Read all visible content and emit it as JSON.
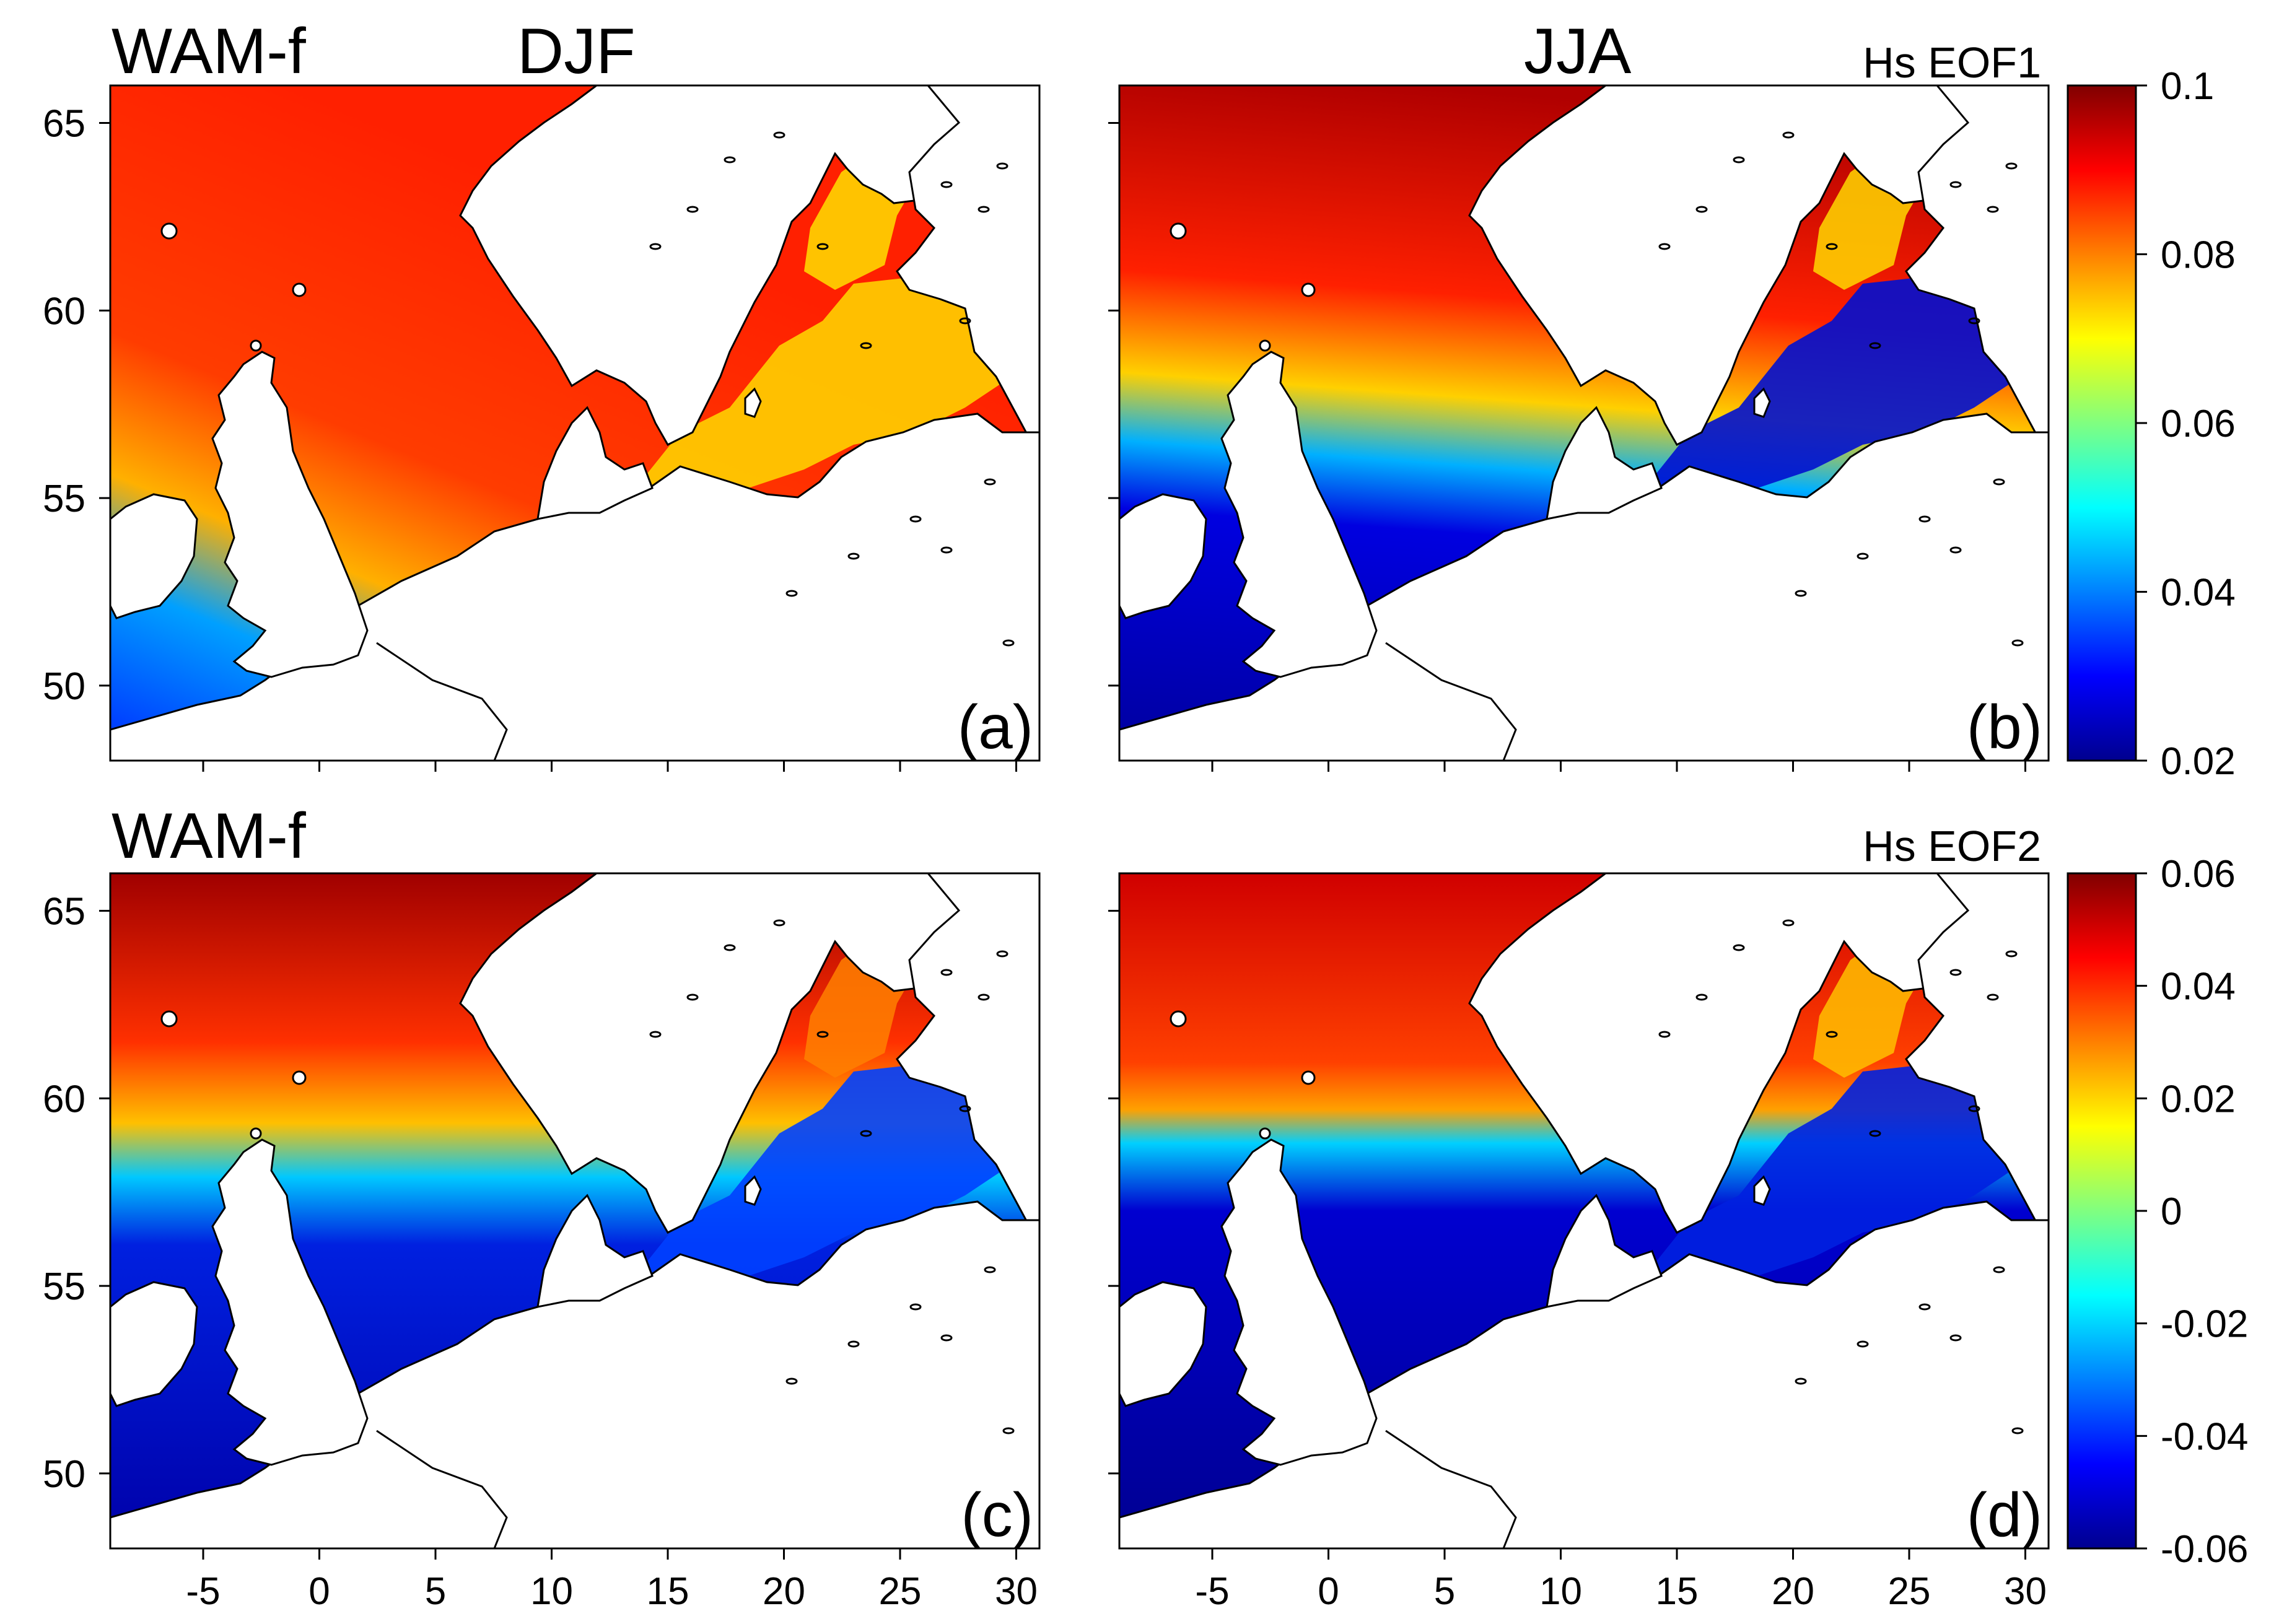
{
  "figure": {
    "model_label_top": "WAM-f",
    "model_label_bottom": "WAM-f",
    "season_left": "DJF",
    "season_right": "JJA",
    "eof1_label": "Hs EOF1",
    "eof2_label": "Hs EOF2"
  },
  "panels": [
    {
      "id": "a",
      "label": "(a)",
      "season": "DJF",
      "eof": 1
    },
    {
      "id": "b",
      "label": "(b)",
      "season": "JJA",
      "eof": 1
    },
    {
      "id": "c",
      "label": "(c)",
      "season": "DJF",
      "eof": 2
    },
    {
      "id": "d",
      "label": "(d)",
      "season": "JJA",
      "eof": 2
    }
  ],
  "axes": {
    "lon_range": [
      -9,
      31
    ],
    "lat_range": [
      48,
      66
    ],
    "lon_ticks": [
      "-5",
      "0",
      "5",
      "10",
      "15",
      "20",
      "25",
      "30"
    ],
    "lon_tick_values": [
      -5,
      0,
      5,
      10,
      15,
      20,
      25,
      30
    ],
    "lat_ticks": [
      "65",
      "60",
      "55",
      "50"
    ],
    "lat_tick_values": [
      65,
      60,
      55,
      50
    ]
  },
  "colorbars": [
    {
      "id": "eof1",
      "range": [
        0.02,
        0.1
      ],
      "tick_values": [
        0.1,
        0.08,
        0.06,
        0.04,
        0.02
      ],
      "tick_labels": [
        "0.1",
        "0.08",
        "0.06",
        "0.04",
        "0.02"
      ]
    },
    {
      "id": "eof2",
      "range": [
        -0.06,
        0.06
      ],
      "tick_values": [
        0.06,
        0.04,
        0.02,
        0,
        -0.02,
        -0.04,
        -0.06
      ],
      "tick_labels": [
        "0.06",
        "0.04",
        "0.02",
        "0",
        "-0.02",
        "-0.04",
        "-0.06"
      ]
    }
  ],
  "colormap": [
    "#00008f",
    "#0000ff",
    "#0080ff",
    "#00ffff",
    "#80ff80",
    "#ffff00",
    "#ff8000",
    "#ff0000",
    "#800000"
  ]
}
